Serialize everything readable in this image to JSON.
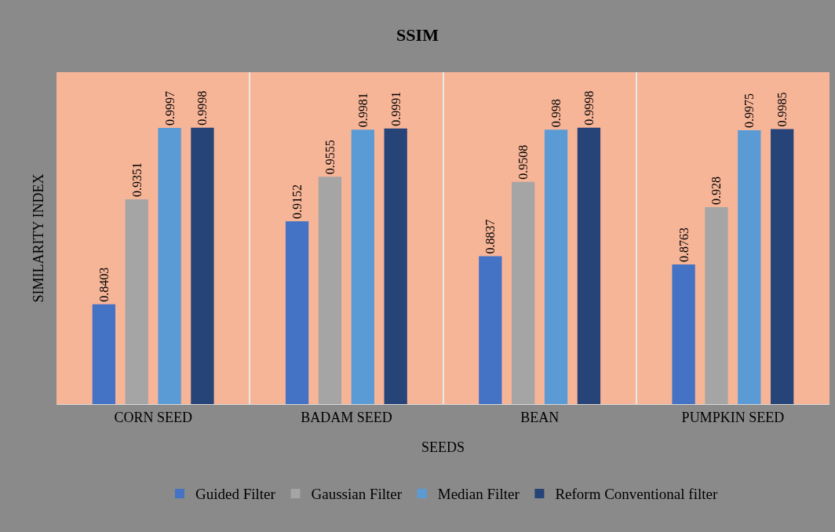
{
  "chart_data": {
    "type": "bar",
    "title": "SSIM",
    "xlabel": "SEEDS",
    "ylabel": "SIMILARITY INDEX",
    "categories": [
      "CORN SEED",
      "BADAM SEED",
      "BEAN",
      "PUMPKIN SEED"
    ],
    "series": [
      {
        "name": "Guided Filter",
        "color": "#4472c4",
        "values": [
          0.8403,
          0.9152,
          0.8837,
          0.8763
        ]
      },
      {
        "name": "Gaussian Filter",
        "color": "#a5a5a5",
        "values": [
          0.9351,
          0.9555,
          0.9508,
          0.928
        ]
      },
      {
        "name": "Median Filter",
        "color": "#5b9bd5",
        "values": [
          0.9997,
          0.9981,
          0.998,
          0.9975
        ]
      },
      {
        "name": "Reform Conventional filter",
        "color": "#264478",
        "values": [
          0.9998,
          0.9991,
          0.9998,
          0.9985
        ]
      }
    ],
    "ylim": [
      0.75,
      1.05
    ],
    "data_labels": true,
    "grid": "x",
    "legend": "bottom",
    "tick_labels": "x"
  }
}
